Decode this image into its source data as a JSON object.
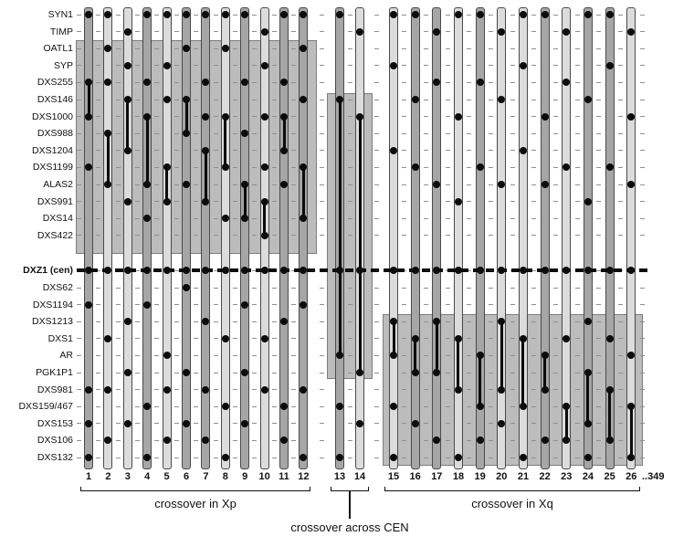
{
  "figure": {
    "markers": [
      "SYN1",
      "TIMP",
      "OATL1",
      "SYP",
      "DXS255",
      "DXS146",
      "DXS1000",
      "DXS988",
      "DXS1204",
      "DXS1199",
      "ALAS2",
      "DXS991",
      "DXS14",
      "DXS422",
      "DXZ1 (cen)",
      "DXS62",
      "DXS1194",
      "DXS1213",
      "DXS1",
      "AR",
      "PGK1P1",
      "DXS981",
      "DXS159/467",
      "DXS153",
      "DXS106",
      "DXS132"
    ],
    "centromere_marker_index": 14,
    "overflow_label": "..349",
    "groups": [
      {
        "id": "xp",
        "label": "crossover in Xp",
        "first_column": 1,
        "last_column": 12
      },
      {
        "id": "cen",
        "label": "crossover across CEN",
        "first_column": 13,
        "last_column": 14
      },
      {
        "id": "xq",
        "label": "crossover in Xq",
        "first_column": 15,
        "last_column": 26
      }
    ],
    "columns": [
      {
        "num": 1,
        "shade": "dark",
        "dots": [
          0,
          4,
          6,
          9,
          14,
          16,
          21,
          23,
          25
        ],
        "xline": [
          4,
          6
        ]
      },
      {
        "num": 2,
        "shade": "light",
        "dots": [
          0,
          2,
          4,
          7,
          10,
          14,
          18,
          21,
          24
        ],
        "xline": [
          7,
          10
        ]
      },
      {
        "num": 3,
        "shade": "light",
        "dots": [
          1,
          3,
          5,
          8,
          11,
          14,
          17,
          20,
          23
        ],
        "xline": [
          5,
          8
        ]
      },
      {
        "num": 4,
        "shade": "dark",
        "dots": [
          0,
          4,
          6,
          10,
          12,
          14,
          16,
          22,
          25
        ],
        "xline": [
          6,
          10
        ]
      },
      {
        "num": 5,
        "shade": "light",
        "dots": [
          0,
          3,
          5,
          9,
          11,
          14,
          19,
          21,
          24
        ],
        "xline": [
          9,
          11
        ]
      },
      {
        "num": 6,
        "shade": "dark",
        "dots": [
          0,
          2,
          5,
          7,
          10,
          14,
          15,
          20,
          23
        ],
        "xline": [
          5,
          7
        ]
      },
      {
        "num": 7,
        "shade": "dark",
        "dots": [
          0,
          4,
          6,
          8,
          11,
          14,
          17,
          21,
          24
        ],
        "xline": [
          8,
          11
        ]
      },
      {
        "num": 8,
        "shade": "light",
        "dots": [
          0,
          2,
          6,
          9,
          12,
          14,
          18,
          22,
          25
        ],
        "xline": [
          6,
          9
        ]
      },
      {
        "num": 9,
        "shade": "dark",
        "dots": [
          0,
          4,
          7,
          10,
          12,
          14,
          16,
          20,
          23
        ],
        "xline": [
          10,
          12
        ]
      },
      {
        "num": 10,
        "shade": "light",
        "dots": [
          1,
          3,
          6,
          9,
          11,
          13,
          14,
          18,
          21
        ],
        "xline": [
          11,
          13
        ]
      },
      {
        "num": 11,
        "shade": "dark",
        "dots": [
          0,
          4,
          6,
          8,
          10,
          14,
          17,
          22,
          24
        ],
        "xline": [
          6,
          8
        ]
      },
      {
        "num": 12,
        "shade": "dark",
        "dots": [
          0,
          2,
          5,
          9,
          12,
          14,
          16,
          21,
          25
        ],
        "xline": [
          9,
          12
        ]
      },
      {
        "num": 13,
        "shade": "dark",
        "dots": [
          0,
          5,
          14,
          19,
          22,
          25
        ],
        "xline": [
          5,
          19
        ]
      },
      {
        "num": 14,
        "shade": "light",
        "dots": [
          1,
          6,
          14,
          20,
          23
        ],
        "xline": [
          6,
          20
        ]
      },
      {
        "num": 15,
        "shade": "light",
        "dots": [
          0,
          3,
          8,
          14,
          17,
          19,
          22,
          25
        ],
        "xline": [
          17,
          19
        ]
      },
      {
        "num": 16,
        "shade": "dark",
        "dots": [
          0,
          5,
          9,
          14,
          18,
          20,
          23
        ],
        "xline": [
          18,
          20
        ]
      },
      {
        "num": 17,
        "shade": "dark",
        "dots": [
          1,
          4,
          10,
          14,
          17,
          20,
          24
        ],
        "xline": [
          17,
          20
        ]
      },
      {
        "num": 18,
        "shade": "light",
        "dots": [
          0,
          6,
          11,
          14,
          18,
          21,
          25
        ],
        "xline": [
          18,
          21
        ]
      },
      {
        "num": 19,
        "shade": "dark",
        "dots": [
          0,
          4,
          9,
          14,
          19,
          22,
          24
        ],
        "xline": [
          19,
          22
        ]
      },
      {
        "num": 20,
        "shade": "light",
        "dots": [
          1,
          5,
          10,
          14,
          17,
          21,
          23
        ],
        "xline": [
          17,
          21
        ]
      },
      {
        "num": 21,
        "shade": "light",
        "dots": [
          0,
          3,
          8,
          14,
          18,
          22,
          25
        ],
        "xline": [
          18,
          22
        ]
      },
      {
        "num": 22,
        "shade": "dark",
        "dots": [
          0,
          6,
          10,
          14,
          19,
          21,
          24
        ],
        "xline": [
          19,
          21
        ]
      },
      {
        "num": 23,
        "shade": "light",
        "dots": [
          1,
          4,
          9,
          14,
          18,
          22,
          24
        ],
        "xline": [
          22,
          24
        ]
      },
      {
        "num": 24,
        "shade": "dark",
        "dots": [
          0,
          5,
          11,
          14,
          17,
          20,
          23,
          25
        ],
        "xline": [
          20,
          23
        ]
      },
      {
        "num": 25,
        "shade": "dark",
        "dots": [
          0,
          3,
          9,
          14,
          18,
          21,
          24
        ],
        "xline": [
          21,
          24
        ]
      },
      {
        "num": 26,
        "shade": "light",
        "dots": [
          1,
          6,
          10,
          14,
          19,
          22,
          25
        ],
        "xline": [
          22,
          25
        ]
      }
    ],
    "colors": {
      "bar_light": "#dcdcdc",
      "bar_dark": "#a6a6a6",
      "region_box_fill": "#bcbcbc",
      "dot": "#0c0c0c",
      "centromere_line": "#0c0c0c"
    }
  }
}
